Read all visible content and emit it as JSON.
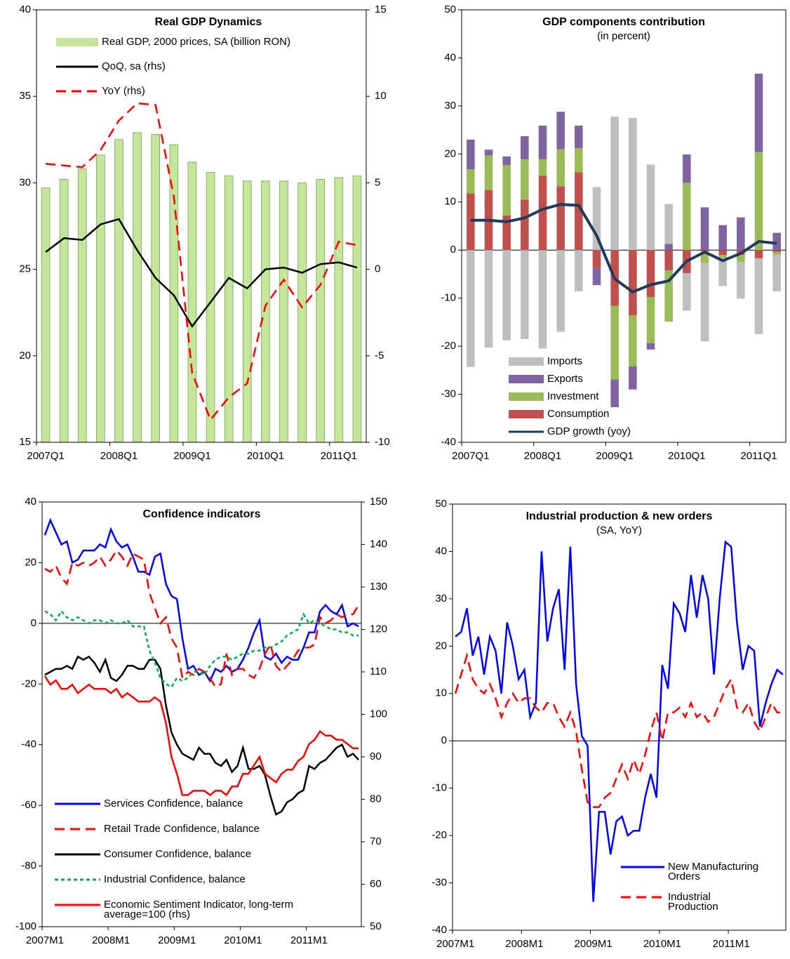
{
  "chart_data": [
    {
      "type": "bar-line",
      "title": "Real GDP Dynamics",
      "categories": [
        "2007Q1",
        null,
        null,
        null,
        "2008Q1",
        null,
        null,
        null,
        "2009Q1",
        null,
        null,
        null,
        "2010Q1",
        null,
        null,
        null,
        "2011Q1",
        null
      ],
      "ylim": [
        15,
        40
      ],
      "yticks": [
        15,
        20,
        25,
        30,
        35,
        40
      ],
      "y2lim": [
        -10,
        15
      ],
      "y2ticks": [
        -10,
        -5,
        0,
        5,
        10,
        15
      ],
      "series": [
        {
          "name": "Real GDP, 2000 prices, SA (billion RON)",
          "type": "bar",
          "color": "#c4e59a",
          "values": [
            29.7,
            30.2,
            30.8,
            31.6,
            32.5,
            32.9,
            32.8,
            32.2,
            31.2,
            30.6,
            30.4,
            30.1,
            30.1,
            30.1,
            30.0,
            30.2,
            30.3,
            30.4
          ]
        },
        {
          "name": "QoQ, sa (rhs)",
          "type": "line",
          "axis": "y2",
          "color": "#000000",
          "style": "solid",
          "values": [
            1.0,
            1.8,
            1.7,
            2.6,
            2.9,
            1.1,
            -0.5,
            -1.5,
            -3.3,
            -1.9,
            -0.5,
            -1.1,
            0.0,
            0.1,
            -0.2,
            0.3,
            0.4,
            0.1
          ]
        },
        {
          "name": "YoY (rhs)",
          "type": "line",
          "axis": "y2",
          "color": "#ff0000",
          "style": "dashed",
          "values": [
            6.1,
            6.0,
            5.9,
            6.9,
            8.6,
            9.6,
            9.5,
            4.2,
            -6.0,
            -8.7,
            -7.4,
            -6.6,
            -2.1,
            -0.6,
            -2.2,
            -0.9,
            1.6,
            1.4
          ]
        }
      ]
    },
    {
      "type": "stacked-bar-line",
      "title": "GDP components  contribution",
      "subtitle": "(in percent)",
      "categories": [
        "2007Q1",
        null,
        null,
        null,
        "2008Q1",
        null,
        null,
        null,
        "2009Q1",
        null,
        null,
        null,
        "2010Q1",
        null,
        null,
        null,
        "2011Q1",
        null
      ],
      "ylim": [
        -40,
        50
      ],
      "yticks": [
        -40,
        -30,
        -20,
        -10,
        0,
        10,
        20,
        30,
        40,
        50
      ],
      "series": [
        {
          "name": "Imports",
          "type": "bar",
          "color": "#bfbfbf",
          "values": [
            -24.3,
            -20.3,
            -18.8,
            -18.5,
            -20.5,
            -17.0,
            -8.6,
            13.1,
            27.8,
            27.5,
            17.8,
            8.3,
            -7.8,
            -16.3,
            -6.0,
            -7.6,
            -15.8,
            -7.6
          ]
        },
        {
          "name": "Exports",
          "type": "bar",
          "color": "#8064a2",
          "values": [
            6.2,
            1.2,
            1.8,
            4.8,
            7.0,
            7.8,
            4.7,
            -3.5,
            -5.8,
            -4.8,
            -1.3,
            1.3,
            5.9,
            8.9,
            5.2,
            6.8,
            16.3,
            3.6
          ]
        },
        {
          "name": "Investment",
          "type": "bar",
          "color": "#9bbb59",
          "values": [
            5.0,
            7.2,
            10.5,
            8.4,
            3.4,
            7.7,
            5.0,
            0,
            -15.3,
            -10.6,
            -9.6,
            -10.7,
            14.0,
            -2.4,
            -0.5,
            -1.5,
            20.4,
            -0.6
          ]
        },
        {
          "name": "Consumption",
          "type": "bar",
          "color": "#c0504d",
          "values": [
            11.8,
            12.5,
            7.2,
            10.5,
            15.5,
            13.3,
            16.2,
            -3.8,
            -11.6,
            -13.6,
            -9.8,
            -4.2,
            -4.8,
            -0.3,
            -1.0,
            -1.0,
            -1.7,
            -0.4
          ]
        },
        {
          "name": "GDP growth (yoy)",
          "type": "line",
          "color": "#1f3a5a",
          "style": "solid",
          "values": [
            6.2,
            6.2,
            5.9,
            6.7,
            8.5,
            9.5,
            9.3,
            3.0,
            -6.0,
            -8.7,
            -7.2,
            -6.4,
            -2.3,
            -0.4,
            -2.2,
            -0.7,
            1.8,
            1.4
          ]
        }
      ]
    },
    {
      "type": "line",
      "title": "Confidence indicators",
      "categories": [
        "2007M1",
        null,
        null,
        null,
        null,
        null,
        null,
        null,
        null,
        null,
        null,
        null,
        "2008M1",
        null,
        null,
        null,
        null,
        null,
        null,
        null,
        null,
        null,
        null,
        null,
        "2009M1",
        null,
        null,
        null,
        null,
        null,
        null,
        null,
        null,
        null,
        null,
        null,
        "2010M1",
        null,
        null,
        null,
        null,
        null,
        null,
        null,
        null,
        null,
        null,
        null,
        "2011M1",
        null,
        null,
        null,
        null,
        null,
        null,
        null,
        null,
        null
      ],
      "ylim": [
        -100,
        40
      ],
      "yticks": [
        -100,
        -80,
        -60,
        -40,
        -20,
        0,
        20,
        40
      ],
      "y2lim": [
        50,
        150
      ],
      "y2ticks": [
        50,
        60,
        70,
        80,
        90,
        100,
        110,
        120,
        130,
        140,
        150
      ],
      "series": [
        {
          "name": "Services Confidence, balance",
          "type": "line",
          "color": "#0000ff",
          "style": "solid",
          "values": [
            29,
            34,
            30,
            26,
            27,
            20,
            21,
            24,
            24,
            24,
            26,
            25,
            31,
            27,
            25,
            26,
            22,
            17,
            17,
            16,
            22,
            23,
            13,
            9,
            8,
            -5,
            -15,
            -14,
            -17,
            -16,
            -19,
            -15,
            -16,
            -14,
            -16,
            -15,
            -12,
            -8,
            -3,
            1,
            -11,
            -12,
            -10,
            -13,
            -11,
            -12,
            -12,
            -8,
            -3,
            -3,
            4,
            6,
            4,
            3,
            6,
            -1,
            0,
            -1
          ]
        },
        {
          "name": "Retail Trade Confidence, balance",
          "type": "line",
          "color": "#ff0000",
          "style": "dashed",
          "values": [
            18,
            17,
            19,
            15,
            13,
            20,
            19,
            20,
            19,
            20,
            22,
            19,
            21,
            24,
            22,
            19,
            23,
            22,
            21,
            10,
            5,
            0,
            2,
            -5,
            -8,
            -18,
            -16,
            -17,
            -15,
            -16,
            -18,
            -21,
            -20,
            -10,
            -17,
            -15,
            -15,
            -17,
            -18,
            -15,
            -10,
            -7,
            -14,
            -16,
            -14,
            -12,
            -9,
            -8,
            -8,
            -7,
            2,
            0,
            1,
            3,
            2,
            3,
            3,
            6
          ]
        },
        {
          "name": "Consumer Confidence, balance",
          "type": "line",
          "color": "#000000",
          "style": "solid",
          "values": [
            -17,
            -16,
            -15,
            -15,
            -14,
            -15,
            -11,
            -12,
            -11,
            -13,
            -16,
            -12,
            -18,
            -19,
            -17,
            -14,
            -14,
            -15,
            -15,
            -12,
            -12,
            -15,
            -27,
            -36,
            -40,
            -43,
            -44,
            -45,
            -41,
            -43,
            -43,
            -46,
            -47,
            -45,
            -49,
            -47,
            -41,
            -48,
            -48,
            -47,
            -50,
            -57,
            -63,
            -62,
            -59,
            -58,
            -56,
            -55,
            -47,
            -48,
            -46,
            -45,
            -43,
            -41,
            -40,
            -44,
            -43,
            -45
          ]
        },
        {
          "name": "Industrial Confidence, balance",
          "type": "line",
          "color": "#00b050",
          "style": "dotted",
          "values": [
            4,
            3,
            1,
            4,
            2,
            1,
            2,
            1,
            0,
            1,
            1,
            0,
            1,
            0,
            0,
            1,
            -1,
            -1,
            -1,
            -9,
            -13,
            -18,
            -20,
            -21,
            -18,
            -19,
            -18,
            -16,
            -16,
            -17,
            -14,
            -12,
            -11,
            -11,
            -12,
            -11,
            -10,
            -10,
            -9,
            -9,
            -8,
            -8,
            -7,
            -6,
            -4,
            -3,
            -2,
            3,
            0,
            1,
            0,
            -1,
            -2,
            -2,
            -3,
            -3,
            -4,
            -4
          ]
        },
        {
          "name": "Economic Sentiment Indicator, long-term average=100 (rhs)",
          "type": "line",
          "axis": "y2",
          "color": "#ff0000",
          "style": "solid",
          "values": [
            109,
            107,
            108,
            106,
            106,
            107,
            105,
            106,
            107,
            106,
            106,
            106,
            105,
            106,
            104,
            105,
            104,
            103,
            103,
            103,
            104,
            103,
            98,
            90,
            86,
            81,
            81,
            82,
            82,
            82,
            81,
            82,
            82,
            81,
            83,
            83,
            86,
            86,
            88,
            90,
            86,
            85,
            84,
            86,
            87,
            87,
            89,
            90,
            93,
            94,
            96,
            95,
            95,
            94,
            94,
            93,
            92,
            92
          ]
        }
      ]
    },
    {
      "type": "line",
      "title": "Industrial production & new orders",
      "subtitle": "(SA, YoY)",
      "categories": [
        "2007M1",
        null,
        null,
        null,
        null,
        null,
        null,
        null,
        null,
        null,
        null,
        null,
        "2008M1",
        null,
        null,
        null,
        null,
        null,
        null,
        null,
        null,
        null,
        null,
        null,
        "2009M1",
        null,
        null,
        null,
        null,
        null,
        null,
        null,
        null,
        null,
        null,
        null,
        "2010M1",
        null,
        null,
        null,
        null,
        null,
        null,
        null,
        null,
        null,
        null,
        null,
        "2011M1",
        null,
        null,
        null,
        null,
        null,
        null,
        null,
        null,
        null
      ],
      "ylim": [
        -40,
        50
      ],
      "yticks": [
        -40,
        -30,
        -20,
        -10,
        0,
        10,
        20,
        30,
        40,
        50
      ],
      "series": [
        {
          "name": "New Manufacturing Orders",
          "type": "line",
          "color": "#0000ff",
          "style": "solid",
          "values": [
            22,
            23,
            28,
            18,
            22,
            14,
            22,
            19,
            10,
            25,
            20,
            13,
            15,
            5,
            8,
            40,
            21,
            28,
            32,
            15,
            41,
            12,
            1,
            -1,
            -34,
            -15,
            -15,
            -24,
            -17,
            -16,
            -20,
            -19,
            -19,
            -12,
            -7,
            -12,
            16,
            11,
            29,
            27,
            23,
            35,
            26,
            35,
            30,
            14,
            30,
            42,
            41,
            25,
            15,
            20,
            19,
            3,
            8,
            12,
            15,
            14
          ]
        },
        {
          "name": "Industrial Production",
          "type": "line",
          "color": "#ff0000",
          "style": "dashed",
          "values": [
            10,
            14,
            18,
            13,
            11,
            10,
            12,
            9,
            5,
            8,
            10,
            8,
            9,
            9,
            7,
            6,
            8,
            8,
            5,
            3,
            6,
            2,
            -6,
            -13,
            -14,
            -14,
            -12,
            -11,
            -8,
            -5,
            -8,
            -4,
            -7,
            -3,
            2,
            6,
            0,
            6,
            6,
            7,
            5,
            8,
            5,
            6,
            4,
            5,
            8,
            11,
            13,
            7,
            6,
            8,
            4,
            2,
            5,
            8,
            6,
            6
          ]
        }
      ]
    }
  ]
}
